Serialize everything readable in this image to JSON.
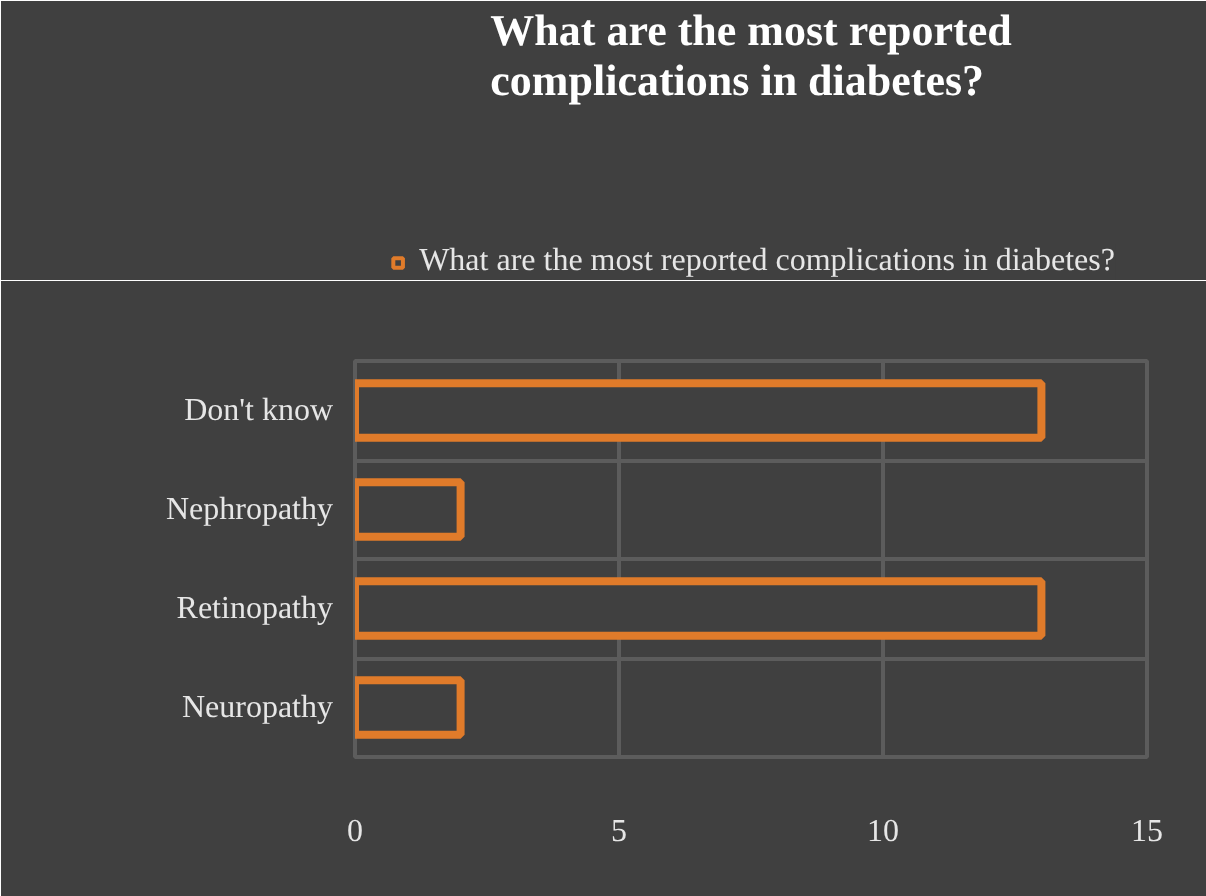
{
  "chart_data": {
    "type": "bar",
    "orientation": "horizontal",
    "title": "What are the most reported\ncomplications in diabetes?",
    "categories": [
      "Don't know",
      "Nephropathy",
      "Retinopathy",
      "Neuropathy"
    ],
    "series": [
      {
        "name": "What are the most reported complications in diabetes?",
        "color": "#e07b2a",
        "values": [
          13,
          2,
          13,
          2
        ]
      }
    ],
    "xlim": [
      0,
      15
    ],
    "xticks": [
      0,
      5,
      10,
      15
    ],
    "grid": true,
    "legend": "top"
  }
}
